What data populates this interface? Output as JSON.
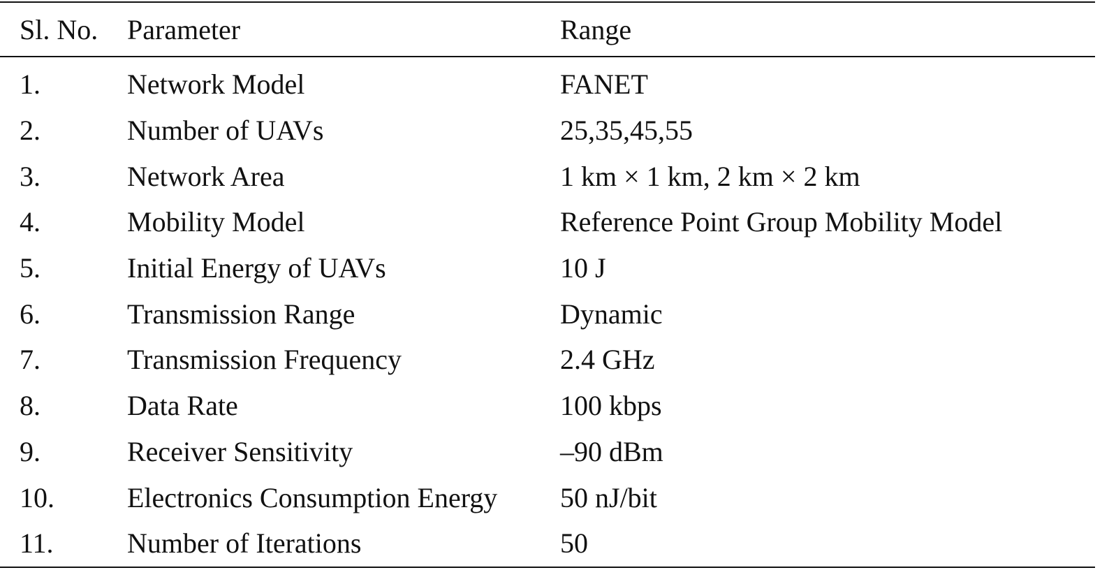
{
  "table": {
    "header": [
      "Sl. No.",
      "Parameter",
      "Range"
    ],
    "rows": [
      [
        "1.",
        "Network Model",
        "FANET"
      ],
      [
        "2.",
        "Number of UAVs",
        "25,35,45,55"
      ],
      [
        "3.",
        "Network Area",
        "1 km × 1 km, 2 km × 2 km"
      ],
      [
        "4.",
        "Mobility Model",
        "Reference Point Group Mobility Model"
      ],
      [
        "5.",
        "Initial Energy of UAVs",
        "10 J"
      ],
      [
        "6.",
        "Transmission Range",
        "Dynamic"
      ],
      [
        "7.",
        "Transmission Frequency",
        "2.4 GHz"
      ],
      [
        "8.",
        "Data Rate",
        "100 kbps"
      ],
      [
        "9.",
        "Receiver Sensitivity",
        "–90 dBm"
      ],
      [
        "10.",
        "Electronics Consumption Energy",
        "50 nJ/bit"
      ],
      [
        "11.",
        "Number of Iterations",
        "50"
      ]
    ]
  }
}
